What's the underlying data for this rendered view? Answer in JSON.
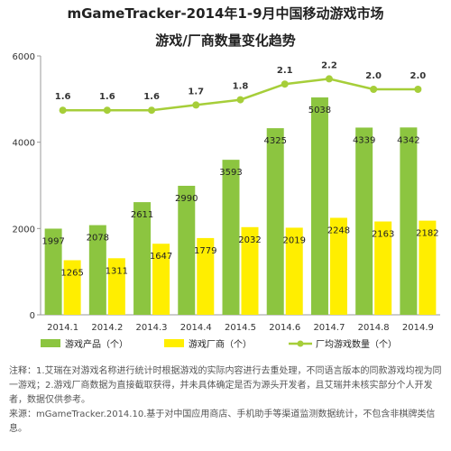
{
  "chart_data": {
    "type": "bar",
    "title": "mGameTracker-2014年1-9月中国移动游戏市场",
    "subtitle": "游戏/厂商数量变化趋势",
    "categories": [
      "2014.1",
      "2014.2",
      "2014.3",
      "2014.4",
      "2014.5",
      "2014.6",
      "2014.7",
      "2014.8",
      "2014.9"
    ],
    "series": [
      {
        "name": "游戏产品（个）",
        "kind": "bar",
        "color": "#8cc540",
        "values": [
          1997,
          2078,
          2611,
          2990,
          3593,
          4325,
          5038,
          4339,
          4342
        ]
      },
      {
        "name": "游戏厂商（个）",
        "kind": "bar",
        "color": "#ffee00",
        "values": [
          1265,
          1311,
          1647,
          1779,
          2032,
          2019,
          2248,
          2163,
          2182
        ]
      },
      {
        "name": "厂均游戏数量（个）",
        "kind": "line",
        "color": "#a6ce39",
        "values": [
          1.6,
          1.6,
          1.6,
          1.7,
          1.8,
          2.1,
          2.2,
          2.0,
          2.0
        ],
        "labels": [
          "1.6",
          "1.6",
          "1.6",
          "1.7",
          "1.8",
          "2.1",
          "2.2",
          "2.0",
          "2.0"
        ]
      }
    ],
    "ylim": [
      0,
      6000
    ],
    "yticks": [
      0,
      2000,
      4000,
      6000
    ],
    "grid": false,
    "legend": "bottom"
  },
  "notes": {
    "line1": "注释：1.艾瑞在对游戏名称进行统计时根据游戏的实际内容进行去重处理，不同语言版本的同款游戏均视为同一游戏；2.游戏厂商数据为直接截取获得，并未具体确定是否为源头开发者，且艾瑞并未核实部分个人开发者，数据仅供参考。",
    "line2": "来源：mGameTracker.2014.10.基于对中国应用商店、手机助手等渠道监测数据统计，不包含非棋牌类信息。"
  }
}
